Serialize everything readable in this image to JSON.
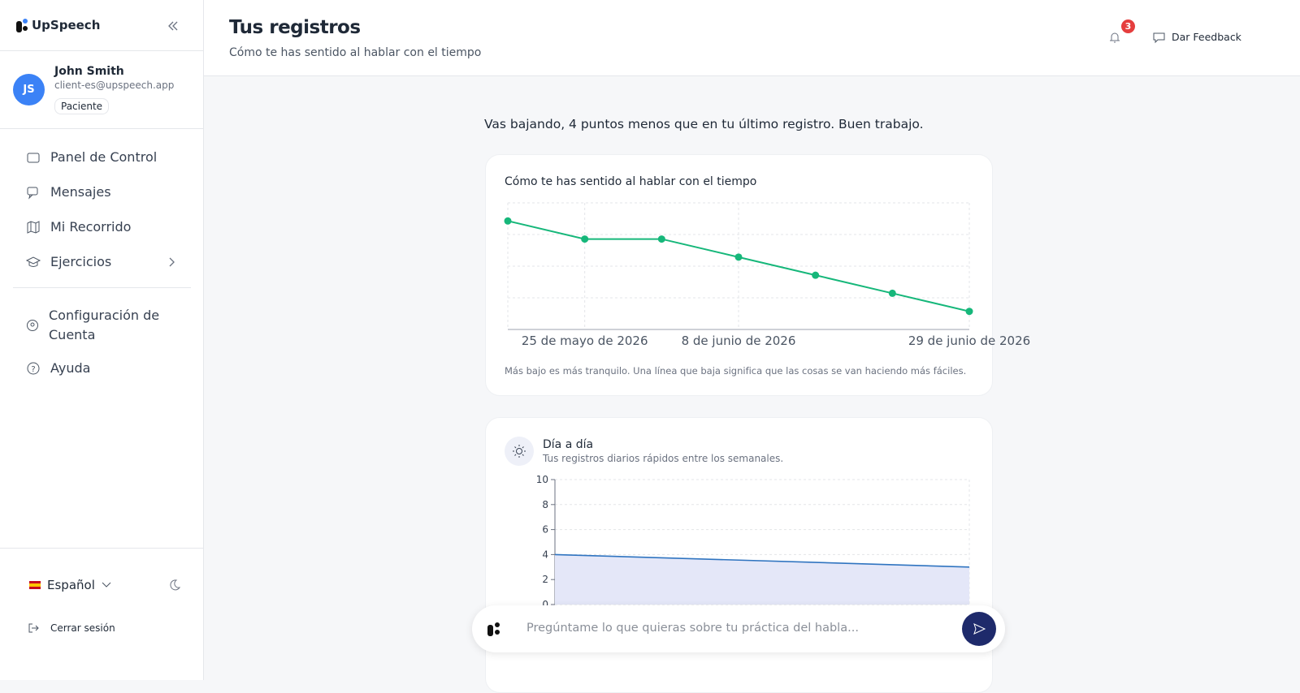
{
  "sidebar": {
    "brand": "UpSpeech",
    "user": {
      "initials": "JS",
      "name": "John Smith",
      "email": "client-es@upspeech.app",
      "role": "Paciente"
    },
    "nav": [
      "Panel de Control",
      "Mensajes",
      "Mi Recorrido",
      "Ejercicios"
    ],
    "nav_secondary": [
      "Configuración de Cuenta",
      "Ayuda"
    ],
    "language": "Español",
    "logout": "Cerrar sesión"
  },
  "header": {
    "title": "Tus registros",
    "subtitle": "Cómo te has sentido al hablar con el tiempo",
    "notifications": 3,
    "feedback": "Dar Feedback"
  },
  "summary": "Vas bajando, 4 puntos menos que en tu último registro. Buen trabajo.",
  "chart_data": [
    {
      "type": "line",
      "title": "Cómo te has sentido al hablar con el tiempo",
      "categories": [
        null,
        "25 de mayo de 2026",
        null,
        "8 de junio de 2026",
        null,
        null,
        "29 de junio de 2026"
      ],
      "values": [
        24,
        20,
        20,
        16,
        12,
        8,
        4
      ],
      "color": "#16b77a",
      "ylim": [
        0,
        28
      ],
      "yticks": [
        0,
        7,
        14,
        21,
        28
      ],
      "grid": true,
      "note": "Más bajo es más tranquilo. Una línea que baja significa que las cosas se van haciendo más fáciles."
    },
    {
      "type": "area",
      "title": "Día a día",
      "subtitle": "Tus registros diarios rápidos entre los semanales.",
      "categories": [
        null,
        null
      ],
      "values": [
        4,
        3
      ],
      "color": "#2f74c0",
      "ylim": [
        0,
        10
      ],
      "yticks": [
        0,
        2,
        4,
        6,
        8,
        10
      ],
      "grid": true
    }
  ],
  "chat": {
    "placeholder": "Pregúntame lo que quieras sobre tu práctica del habla..."
  }
}
